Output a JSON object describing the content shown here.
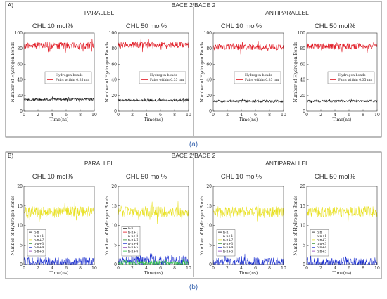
{
  "panel_a": {
    "corner": "A)",
    "header": "BACE 2/BACE 2",
    "groups": [
      "PARALLEL",
      "ANTIPARALLEL"
    ],
    "caption": "(a)"
  },
  "panel_b": {
    "corner": "B)",
    "header": "BACE 2/BACE 2",
    "groups": [
      "PARALLEL",
      "ANTIPARALLEL"
    ],
    "caption": "(b)"
  },
  "colors": {
    "hbonds": "#111111",
    "pairs": "#e0141e",
    "n_n": "#1a1a1a",
    "n_n1": "#e0141e",
    "n_n2": "#e8e020",
    "n_n3": "#2a8c2a",
    "n_n4": "#1b2fcf",
    "n_n5": "#8c3bb0",
    "n_n6": "#2ec04a",
    "frame": "#333333",
    "divider": "#555555"
  },
  "chart_data": [
    {
      "type": "line",
      "panel": "A",
      "group": "PARALLEL",
      "title": "CHL 10 mol%",
      "xlabel": "Time(ns)",
      "ylabel": "Number of Hydrogen Bonds",
      "xlim": [
        0,
        10
      ],
      "ylim": [
        0,
        100
      ],
      "xticks": [
        0,
        2,
        4,
        6,
        8,
        10
      ],
      "yticks": [
        0,
        20,
        40,
        60,
        80,
        100
      ],
      "legend": "center",
      "series": [
        {
          "name": "Hydrogen bonds",
          "color_key": "hbonds",
          "mean": 15,
          "noise": 1.6
        },
        {
          "name": "Pairs within 0.35 nm",
          "color_key": "pairs",
          "mean": 84,
          "noise": 4.2
        }
      ]
    },
    {
      "type": "line",
      "panel": "A",
      "group": "PARALLEL",
      "title": "CHL 50 mol%",
      "xlabel": "Time(ns)",
      "ylabel": "Number of Hydrogen Bonds",
      "xlim": [
        0,
        10
      ],
      "ylim": [
        0,
        100
      ],
      "xticks": [
        0,
        2,
        4,
        6,
        8,
        10
      ],
      "yticks": [
        0,
        20,
        40,
        60,
        80,
        100
      ],
      "legend": "center",
      "series": [
        {
          "name": "Hydrogen bonds",
          "color_key": "hbonds",
          "mean": 14,
          "noise": 1.5
        },
        {
          "name": "Pairs within 0.35 nm",
          "color_key": "pairs",
          "mean": 85,
          "noise": 4.0
        }
      ]
    },
    {
      "type": "line",
      "panel": "A",
      "group": "ANTIPARALLEL",
      "title": "CHL 10 mol%",
      "xlabel": "Time(ns)",
      "ylabel": "Number of Hydrogen Bonds",
      "xlim": [
        0,
        10
      ],
      "ylim": [
        0,
        100
      ],
      "xticks": [
        0,
        2,
        4,
        6,
        8,
        10
      ],
      "yticks": [
        0,
        20,
        40,
        60,
        80,
        100
      ],
      "legend": "center",
      "series": [
        {
          "name": "Hydrogen bonds",
          "color_key": "hbonds",
          "mean": 13,
          "noise": 1.5
        },
        {
          "name": "Pairs within 0.35 nm",
          "color_key": "pairs",
          "mean": 82,
          "noise": 4.0
        }
      ]
    },
    {
      "type": "line",
      "panel": "A",
      "group": "ANTIPARALLEL",
      "title": "CHL 50 mol%",
      "xlabel": "Time(ns)",
      "ylabel": "Number of Hydrogen Bonds",
      "xlim": [
        0,
        10
      ],
      "ylim": [
        0,
        100
      ],
      "xticks": [
        0,
        2,
        4,
        6,
        8,
        10
      ],
      "yticks": [
        0,
        20,
        40,
        60,
        80,
        100
      ],
      "legend": "center",
      "series": [
        {
          "name": "Hydrogen bonds",
          "color_key": "hbonds",
          "mean": 13,
          "noise": 1.5
        },
        {
          "name": "Pairs within 0.35 nm",
          "color_key": "pairs",
          "mean": 83,
          "noise": 4.0
        }
      ]
    },
    {
      "type": "line",
      "panel": "B",
      "group": "PARALLEL",
      "title": "CHL 10 mol%",
      "xlabel": "Time(ns)",
      "ylabel": "Number of Hydrogen Bonds",
      "xlim": [
        0,
        10
      ],
      "ylim": [
        0,
        20
      ],
      "xticks": [
        0,
        2,
        4,
        6,
        8,
        10
      ],
      "yticks": [
        0,
        5,
        10,
        15,
        20
      ],
      "legend": "left",
      "series": [
        {
          "name": "n-n",
          "color_key": "n_n",
          "mean": 0,
          "noise": 0
        },
        {
          "name": "n-n+1",
          "color_key": "n_n1",
          "mean": 0,
          "noise": 0
        },
        {
          "name": "n-n+2",
          "color_key": "n_n2",
          "mean": 13.5,
          "noise": 1.4
        },
        {
          "name": "n-n+3",
          "color_key": "n_n3",
          "mean": 0,
          "noise": 0
        },
        {
          "name": "n-n+4",
          "color_key": "n_n4",
          "mean": 0.6,
          "noise": 1.2
        },
        {
          "name": "n-n+5",
          "color_key": "n_n5",
          "mean": 0,
          "noise": 0
        }
      ]
    },
    {
      "type": "line",
      "panel": "B",
      "group": "PARALLEL",
      "title": "CHL 50 mol%",
      "xlabel": "Time(ns)",
      "ylabel": "Number of Hydrogen Bonds",
      "xlim": [
        0,
        10
      ],
      "ylim": [
        0,
        20
      ],
      "xticks": [
        0,
        2,
        4,
        6,
        8,
        10
      ],
      "yticks": [
        0,
        5,
        10,
        15,
        20
      ],
      "legend": "left",
      "series": [
        {
          "name": "n-n",
          "color_key": "n_n",
          "mean": 0,
          "noise": 0
        },
        {
          "name": "n-n+1",
          "color_key": "n_n1",
          "mean": 0,
          "noise": 0
        },
        {
          "name": "n-n+2",
          "color_key": "n_n2",
          "mean": 13.5,
          "noise": 1.4
        },
        {
          "name": "n-n+3",
          "color_key": "n_n3",
          "mean": 0,
          "noise": 0
        },
        {
          "name": "n-n+4",
          "color_key": "n_n4",
          "mean": 0.9,
          "noise": 1.4
        },
        {
          "name": "n-n+5",
          "color_key": "n_n5",
          "mean": 0,
          "noise": 0
        },
        {
          "name": "n-n+6",
          "color_key": "n_n6",
          "mean": 0.4,
          "noise": 0.6
        }
      ]
    },
    {
      "type": "line",
      "panel": "B",
      "group": "ANTIPARALLEL",
      "title": "CHL 10 mol%",
      "xlabel": "Time(ns)",
      "ylabel": "Number of Hydrogen Bonds",
      "xlim": [
        0,
        10
      ],
      "ylim": [
        0,
        20
      ],
      "xticks": [
        0,
        2,
        4,
        6,
        8,
        10
      ],
      "yticks": [
        0,
        5,
        10,
        15,
        20
      ],
      "legend": "left",
      "series": [
        {
          "name": "n-n",
          "color_key": "n_n",
          "mean": 0,
          "noise": 0
        },
        {
          "name": "n-n+1",
          "color_key": "n_n1",
          "mean": 0,
          "noise": 0
        },
        {
          "name": "n-n+2",
          "color_key": "n_n2",
          "mean": 13.5,
          "noise": 1.4
        },
        {
          "name": "n-n+3",
          "color_key": "n_n3",
          "mean": 0,
          "noise": 0
        },
        {
          "name": "n-n+4",
          "color_key": "n_n4",
          "mean": 0.6,
          "noise": 1.2
        },
        {
          "name": "n-n+5",
          "color_key": "n_n5",
          "mean": 0,
          "noise": 0
        }
      ]
    },
    {
      "type": "line",
      "panel": "B",
      "group": "ANTIPARALLEL",
      "title": "CHL 50 mol%",
      "xlabel": "Time(ns)",
      "ylabel": "Number of Hydrogen Bonds",
      "xlim": [
        0,
        10
      ],
      "ylim": [
        0,
        20
      ],
      "xticks": [
        0,
        2,
        4,
        6,
        8,
        10
      ],
      "yticks": [
        0,
        5,
        10,
        15,
        20
      ],
      "legend": "left",
      "series": [
        {
          "name": "n-n",
          "color_key": "n_n",
          "mean": 0,
          "noise": 0
        },
        {
          "name": "n-n+1",
          "color_key": "n_n1",
          "mean": 0,
          "noise": 0
        },
        {
          "name": "n-n+2",
          "color_key": "n_n2",
          "mean": 13.5,
          "noise": 1.4
        },
        {
          "name": "n-n+3",
          "color_key": "n_n3",
          "mean": 0,
          "noise": 0
        },
        {
          "name": "n-n+4",
          "color_key": "n_n4",
          "mean": 0.6,
          "noise": 1.2
        },
        {
          "name": "n-n+5",
          "color_key": "n_n5",
          "mean": 0,
          "noise": 0
        }
      ]
    }
  ]
}
